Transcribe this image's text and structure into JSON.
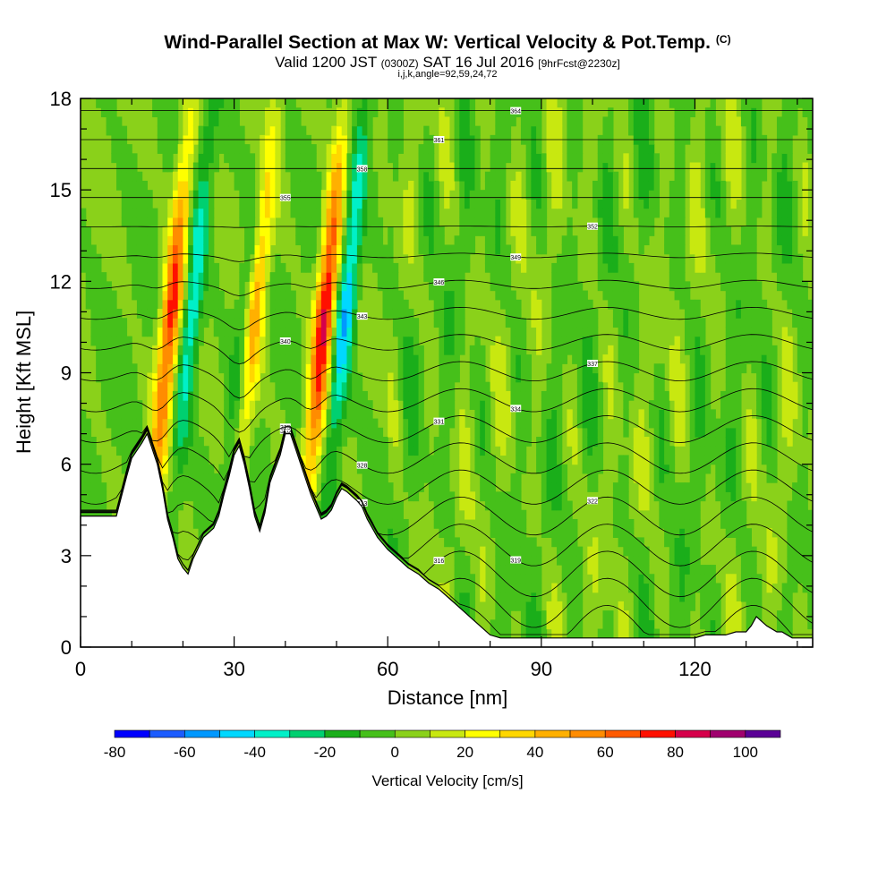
{
  "title": "Wind-Parallel Section at Max W: Vertical Velocity & Pot.Temp.",
  "title_mark": "(C)",
  "subtitle_main": "Valid 1200 JST",
  "subtitle_utc": "(0300Z)",
  "subtitle_date": "SAT 16 Jul 2016",
  "subtitle_fcst": "[9hrFcst@2230z]",
  "subtitle_indices": "i,j,k,angle=92,59,24,72",
  "chart_data": {
    "type": "heatmap",
    "xlabel": "Distance [nm]",
    "ylabel": "Height [Kft MSL]",
    "xlim": [
      0,
      143
    ],
    "ylim": [
      0,
      18
    ],
    "x_ticks": [
      0,
      30,
      60,
      90,
      120
    ],
    "y_ticks": [
      0,
      3,
      6,
      9,
      12,
      15,
      18
    ],
    "terrain_profile": {
      "x": [
        0,
        7,
        9,
        10,
        12,
        13,
        15,
        16,
        17,
        18,
        19,
        20,
        21,
        22,
        24,
        26,
        27,
        28,
        29,
        30,
        31,
        32,
        33,
        34,
        35,
        36,
        37,
        39,
        40,
        41,
        42,
        43,
        45,
        46,
        47,
        48,
        49,
        50,
        51,
        52,
        54,
        55,
        56,
        57,
        58,
        60,
        62,
        64,
        66,
        68,
        70,
        72,
        74,
        76,
        78,
        80,
        82,
        84,
        86,
        88,
        90,
        92,
        95,
        100,
        105,
        110,
        115,
        120,
        122,
        124,
        126,
        128,
        130,
        131,
        132,
        134,
        136,
        137,
        139,
        141,
        143
      ],
      "height": [
        4.3,
        4.3,
        5.6,
        6.2,
        6.7,
        7.0,
        6.0,
        5.2,
        4.2,
        3.6,
        2.9,
        2.6,
        2.4,
        2.9,
        3.6,
        3.9,
        4.3,
        5.0,
        5.6,
        6.3,
        6.6,
        6.0,
        5.2,
        4.3,
        3.8,
        4.4,
        5.4,
        6.3,
        7.0,
        7.0,
        6.5,
        6.0,
        5.0,
        4.6,
        4.2,
        4.3,
        4.5,
        4.9,
        5.2,
        5.1,
        4.8,
        4.6,
        4.2,
        3.9,
        3.6,
        3.2,
        2.9,
        2.6,
        2.4,
        2.1,
        1.9,
        1.6,
        1.3,
        1.0,
        0.7,
        0.4,
        0.3,
        0.3,
        0.3,
        0.3,
        0.3,
        0.3,
        0.3,
        0.3,
        0.3,
        0.3,
        0.3,
        0.3,
        0.4,
        0.4,
        0.4,
        0.5,
        0.5,
        0.7,
        1.0,
        0.7,
        0.5,
        0.5,
        0.3,
        0.3,
        0.3
      ]
    },
    "colorbar": {
      "label": "Vertical Velocity [cm/s]",
      "tick_labels": [
        "-80",
        "-60",
        "-40",
        "-20",
        "0",
        "20",
        "40",
        "60",
        "80",
        "100"
      ],
      "tick_values": [
        -80,
        -60,
        -40,
        -20,
        0,
        20,
        40,
        60,
        80,
        100
      ],
      "range": [
        -80,
        110
      ],
      "colors": [
        "#0000ff",
        "#1c5cff",
        "#0098ff",
        "#00d8ff",
        "#00f0c8",
        "#00d070",
        "#1aae1a",
        "#46c01a",
        "#8ad11a",
        "#c8e810",
        "#ffff00",
        "#ffd700",
        "#ffb000",
        "#ff8c00",
        "#ff5a00",
        "#ff1000",
        "#d6004a",
        "#a0006e",
        "#5a0096"
      ]
    },
    "vertical_velocity_features": [
      {
        "type": "updraft",
        "x": 15,
        "peak": 80
      },
      {
        "type": "updraft",
        "x": 31,
        "peak": 80
      },
      {
        "type": "updraft",
        "x": 45,
        "peak": 90
      },
      {
        "type": "downdraft",
        "x": 19,
        "peak": -45
      },
      {
        "type": "downdraft",
        "x": 30,
        "peak": -50
      },
      {
        "type": "downdraft",
        "x": 49,
        "peak": -55
      }
    ],
    "theta_contour_labels": [
      "310",
      "313",
      "316",
      "319",
      "322",
      "325",
      "328",
      "331",
      "334",
      "337",
      "340",
      "343",
      "346",
      "349",
      "352",
      "355",
      "358",
      "361",
      "364"
    ]
  }
}
